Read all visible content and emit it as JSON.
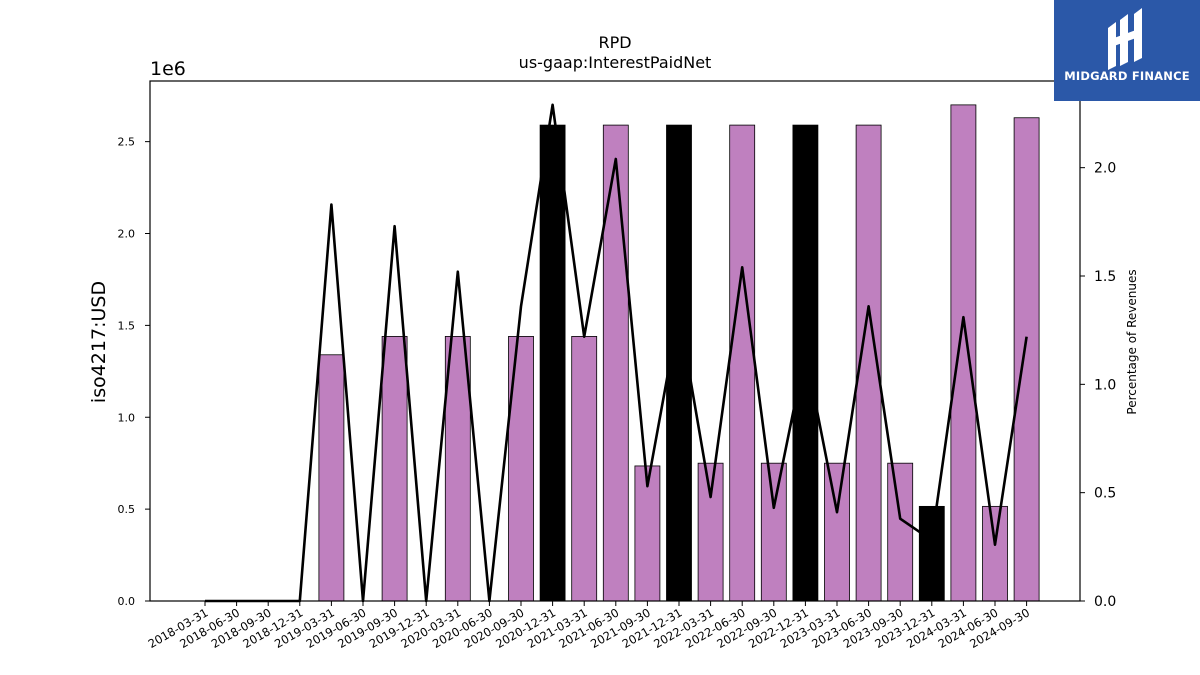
{
  "chart_data": {
    "type": "bar",
    "title": "RPD",
    "subtitle": "us-gaap:InterestPaidNet",
    "ylabel": "iso4217:USD",
    "y2label": "Percentage of Revenues",
    "y_offset_label": "1e6",
    "ylim": [
      0,
      2830000
    ],
    "y2lim": [
      0,
      2.4
    ],
    "yticks": [
      "0.0",
      "0.5",
      "1.0",
      "1.5",
      "2.0",
      "2.5"
    ],
    "y2ticks": [
      "0.0",
      "0.5",
      "1.0",
      "1.5",
      "2.0"
    ],
    "categories": [
      "2018-03-31",
      "2018-06-30",
      "2018-09-30",
      "2018-12-31",
      "2019-03-31",
      "2019-06-30",
      "2019-09-30",
      "2019-12-31",
      "2020-03-31",
      "2020-06-30",
      "2020-09-30",
      "2020-12-31",
      "2021-03-31",
      "2021-06-30",
      "2021-09-30",
      "2021-12-31",
      "2022-03-31",
      "2022-06-30",
      "2022-09-30",
      "2022-12-31",
      "2023-03-31",
      "2023-06-30",
      "2023-09-30",
      "2023-12-31",
      "2024-03-31",
      "2024-06-30",
      "2024-09-30"
    ],
    "series": [
      {
        "type": "bar",
        "values": [
          0,
          0,
          0,
          0,
          1340000,
          0,
          1440000,
          0,
          1440000,
          0,
          1440000,
          2590000,
          1440000,
          2590000,
          735000,
          2590000,
          750000,
          2590000,
          750000,
          2590000,
          750000,
          2590000,
          750000,
          515000,
          2700000,
          515000,
          2630000
        ],
        "highlight": [
          false,
          false,
          false,
          false,
          false,
          false,
          false,
          false,
          false,
          false,
          false,
          true,
          false,
          false,
          false,
          true,
          false,
          false,
          false,
          true,
          false,
          false,
          false,
          true,
          false,
          false,
          false
        ]
      },
      {
        "type": "line",
        "axis": "right",
        "values": [
          0,
          0,
          0,
          0,
          1.83,
          0,
          1.73,
          0,
          1.52,
          0,
          1.36,
          2.29,
          1.22,
          2.04,
          0.53,
          1.33,
          0.48,
          1.54,
          0.43,
          1.15,
          0.41,
          1.36,
          0.38,
          0.28,
          1.31,
          0.26,
          1.22
        ]
      }
    ],
    "colors": {
      "bar": "#bf80bf",
      "highlight": "#000000",
      "line": "#000000"
    }
  },
  "logo": {
    "text": "MIDGARD FINANCE",
    "background": "#2b58a8"
  }
}
